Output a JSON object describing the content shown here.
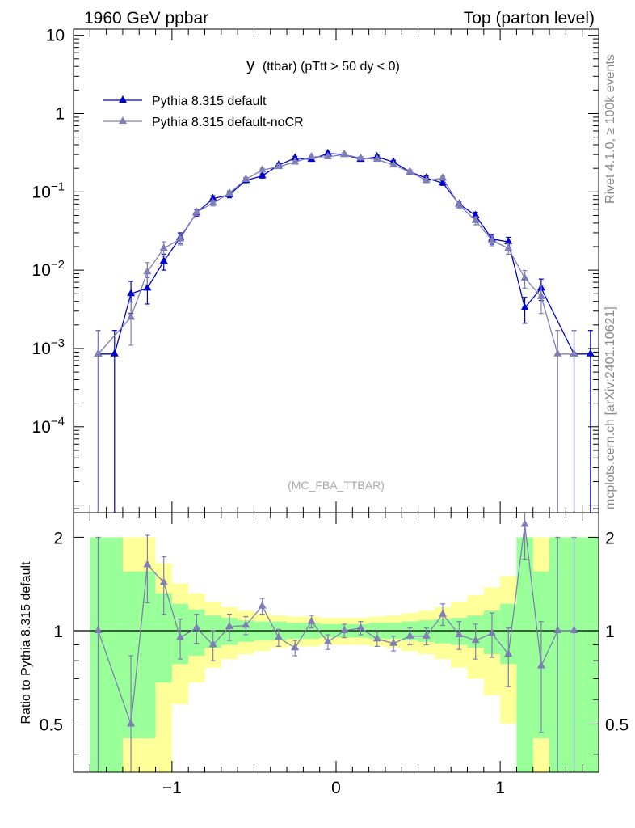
{
  "header": {
    "left": "1960 GeV ppbar",
    "right": "Top (parton level)"
  },
  "side_labels": {
    "top": "Rivet 4.1.0, ≥ 100k events",
    "bottom": "mcplots.cern.ch [arXiv:2401.10621]"
  },
  "chart_data": [
    {
      "type": "line",
      "panel": "main",
      "title": "y (ttbar) (pTtt > 50 dy < 0)",
      "title_main": "y",
      "title_rest": "(ttbar) (pTtt > 50 dy < 0)",
      "watermark": "(MC_FBA_TTBAR)",
      "xlabel": "",
      "ylabel": "",
      "xlim": [
        -1.6,
        1.6
      ],
      "ylim": [
        8e-06,
        12
      ],
      "yscale": "log",
      "x_ticks": [
        -1,
        0,
        1
      ],
      "y_ticks": [
        {
          "value": 0.0001,
          "base": "10",
          "exp": "−4"
        },
        {
          "value": 0.001,
          "base": "10",
          "exp": "−3"
        },
        {
          "value": 0.01,
          "base": "10",
          "exp": "−2"
        },
        {
          "value": 0.1,
          "base": "10",
          "exp": "−1"
        },
        {
          "value": 1,
          "base": "1",
          "exp": ""
        },
        {
          "value": 10,
          "base": "10",
          "exp": ""
        }
      ],
      "legend_position": "top-left",
      "x": [
        -1.45,
        -1.35,
        -1.25,
        -1.15,
        -1.05,
        -0.95,
        -0.85,
        -0.75,
        -0.65,
        -0.55,
        -0.45,
        -0.35,
        -0.25,
        -0.15,
        -0.05,
        0.05,
        0.15,
        0.25,
        0.35,
        0.45,
        0.55,
        0.65,
        0.75,
        0.85,
        0.95,
        1.05,
        1.15,
        1.25,
        1.35,
        1.45,
        1.55
      ],
      "series": [
        {
          "name": "Pythia 8.315 default",
          "color": "#0000cc",
          "values": [
            0.00085,
            0.00085,
            0.005,
            0.0059,
            0.013,
            0.026,
            0.054,
            0.082,
            0.092,
            0.14,
            0.16,
            0.22,
            0.27,
            0.26,
            0.31,
            0.3,
            0.26,
            0.28,
            0.24,
            0.18,
            0.15,
            0.13,
            0.07,
            0.05,
            0.025,
            0.023,
            0.0033,
            0.0059,
            null,
            0.00085,
            0.00085
          ],
          "errors": [
            0.00085,
            0.00085,
            0.0022,
            0.0022,
            0.003,
            0.004,
            0.005,
            0.007,
            0.008,
            0.009,
            0.01,
            0.013,
            0.014,
            0.014,
            0.015,
            0.015,
            0.014,
            0.014,
            0.013,
            0.011,
            0.01,
            0.009,
            0.006,
            0.005,
            0.0035,
            0.0033,
            0.0012,
            0.0018,
            null,
            0.00085,
            0.00085
          ]
        },
        {
          "name": "Pythia 8.315 default-noCR",
          "color": "#7f7fb5",
          "values": [
            0.00085,
            null,
            0.0025,
            0.0095,
            0.019,
            0.025,
            0.055,
            0.072,
            0.096,
            0.145,
            0.19,
            0.21,
            0.24,
            0.28,
            0.28,
            0.3,
            0.27,
            0.26,
            0.22,
            0.18,
            0.14,
            0.15,
            0.068,
            0.043,
            0.024,
            0.019,
            0.0079,
            0.0046,
            0.00085,
            0.00085,
            null
          ],
          "errors": [
            0.00085,
            null,
            0.0014,
            0.003,
            0.004,
            0.004,
            0.005,
            0.006,
            0.007,
            0.009,
            0.01,
            0.011,
            0.012,
            0.013,
            0.013,
            0.014,
            0.013,
            0.013,
            0.011,
            0.01,
            0.009,
            0.009,
            0.006,
            0.005,
            0.0035,
            0.003,
            0.002,
            0.0018,
            0.00085,
            0.00085,
            null
          ]
        }
      ]
    },
    {
      "type": "line",
      "panel": "ratio",
      "xlabel": "",
      "ylabel": "Ratio to Pythia 8.315 default",
      "xlim": [
        -1.6,
        1.6
      ],
      "ylim": [
        0.35,
        2.4
      ],
      "yscale": "log",
      "x_ticks": [
        -1,
        0,
        1
      ],
      "x_tick_labels": [
        "−1",
        "0",
        "1"
      ],
      "y_ticks": [
        0.5,
        1,
        2
      ],
      "y_tick_labels": [
        "0.5",
        "1",
        "2"
      ],
      "reference_line": 1,
      "x": [
        -1.45,
        -1.35,
        -1.25,
        -1.15,
        -1.05,
        -0.95,
        -0.85,
        -0.75,
        -0.65,
        -0.55,
        -0.45,
        -0.35,
        -0.25,
        -0.15,
        -0.05,
        0.05,
        0.15,
        0.25,
        0.35,
        0.45,
        0.55,
        0.65,
        0.75,
        0.85,
        0.95,
        1.05,
        1.15,
        1.25,
        1.35,
        1.45,
        1.55
      ],
      "bands": {
        "green_half_widths": [
          1.0,
          1.0,
          0.55,
          0.55,
          0.32,
          0.22,
          0.17,
          0.12,
          0.1,
          0.08,
          0.07,
          0.07,
          0.06,
          0.06,
          0.05,
          0.05,
          0.05,
          0.06,
          0.06,
          0.07,
          0.08,
          0.09,
          0.1,
          0.12,
          0.16,
          0.22,
          1.0,
          0.55,
          1.0,
          1.0,
          1.0
        ],
        "yellow_half_widths": [
          1.0,
          1.0,
          1.0,
          1.0,
          0.65,
          0.42,
          0.32,
          0.24,
          0.19,
          0.16,
          0.14,
          0.12,
          0.11,
          0.11,
          0.1,
          0.1,
          0.1,
          0.11,
          0.12,
          0.14,
          0.16,
          0.19,
          0.24,
          0.3,
          0.38,
          0.5,
          1.0,
          1.0,
          1.0,
          1.0,
          1.0
        ],
        "green_color": "#99ff99",
        "yellow_color": "#ffff99"
      },
      "series": [
        {
          "name": "Pythia 8.315 default-noCR / default",
          "color": "#7f7fb5",
          "values": [
            1.0,
            null,
            0.5,
            1.63,
            1.43,
            0.95,
            1.02,
            0.9,
            1.03,
            1.04,
            1.2,
            0.95,
            0.88,
            1.07,
            0.92,
            1.0,
            1.02,
            0.94,
            0.91,
            0.96,
            0.96,
            1.13,
            0.97,
            0.93,
            0.98,
            0.84,
            2.2,
            0.77,
            1.0,
            1.0,
            null
          ],
          "errors": [
            1.0,
            null,
            0.33,
            0.4,
            0.3,
            0.14,
            0.11,
            0.1,
            0.1,
            0.07,
            0.07,
            0.06,
            0.05,
            0.05,
            0.05,
            0.05,
            0.05,
            0.05,
            0.05,
            0.06,
            0.06,
            0.09,
            0.1,
            0.12,
            0.16,
            0.18,
            0.5,
            0.3,
            1.0,
            1.0,
            null
          ]
        }
      ]
    }
  ]
}
